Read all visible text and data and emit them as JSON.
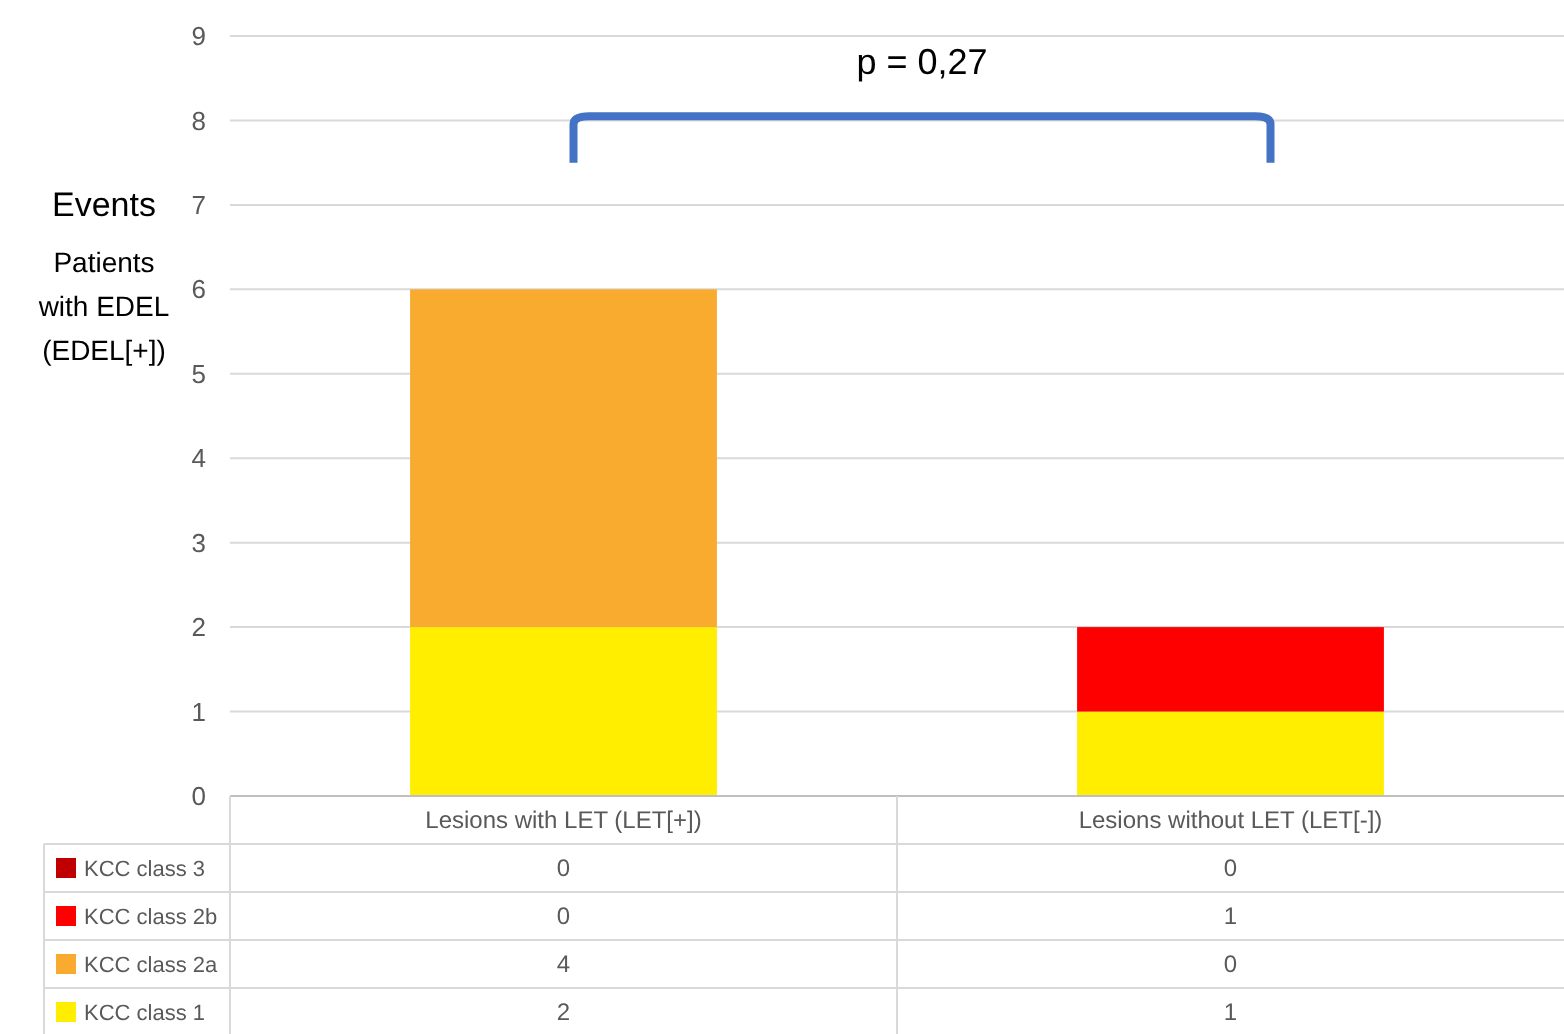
{
  "chart_data": {
    "type": "bar",
    "stacked": true,
    "ylabel": "Events\nPatients\nwith EDEL\n(EDEL[+])",
    "categories": [
      "Lesions with LET (LET[+])",
      "Lesions without LET (LET[-])"
    ],
    "series": [
      {
        "name": "KCC class 1",
        "color": "#ffee00",
        "values": [
          2,
          1
        ]
      },
      {
        "name": "KCC class 2a",
        "color": "#f9ab30",
        "values": [
          4,
          0
        ]
      },
      {
        "name": "KCC class 2b",
        "color": "#ff0000",
        "values": [
          0,
          1
        ]
      },
      {
        "name": "KCC class 3",
        "color": "#c00000",
        "values": [
          0,
          0
        ]
      }
    ],
    "ylim": [
      0,
      9
    ],
    "yticks": [
      0,
      1,
      2,
      3,
      4,
      5,
      6,
      7,
      8,
      9
    ],
    "grid": "y",
    "data_labels": true,
    "legend": "bottom",
    "annotations": [
      "p = 0,27"
    ]
  }
}
